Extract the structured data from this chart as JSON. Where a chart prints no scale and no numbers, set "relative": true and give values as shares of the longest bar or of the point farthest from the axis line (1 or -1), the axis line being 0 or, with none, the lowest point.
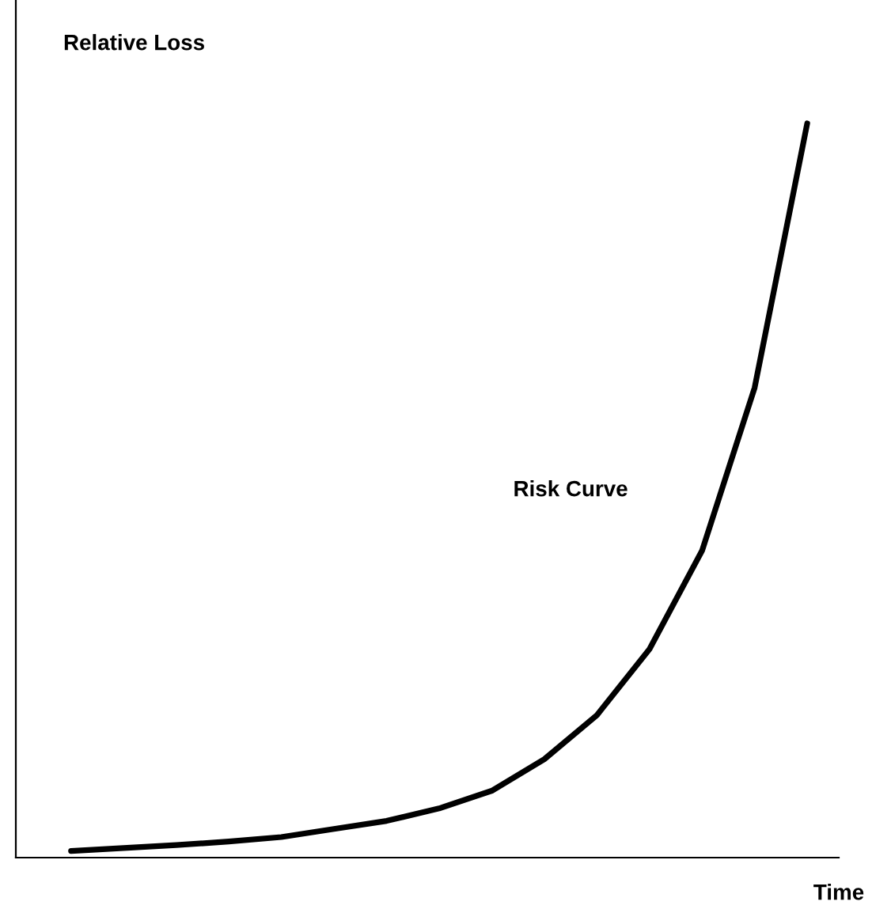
{
  "chart_data": {
    "type": "line",
    "relative": true,
    "xlabel": "Time",
    "ylabel": "Relative Loss",
    "categories": [
      null,
      null,
      null,
      null,
      null,
      null,
      null,
      null,
      null,
      null,
      null,
      null,
      null,
      null,
      null
    ],
    "series": [
      {
        "name": "Risk Curve",
        "color": "#000000",
        "values": [
          0.009,
          0.013,
          0.017,
          0.022,
          0.028,
          0.039,
          0.05,
          0.067,
          0.091,
          0.134,
          0.194,
          0.284,
          0.418,
          0.64,
          1.0
        ]
      }
    ],
    "legend": false,
    "marker": "none",
    "line_style": "solid"
  }
}
